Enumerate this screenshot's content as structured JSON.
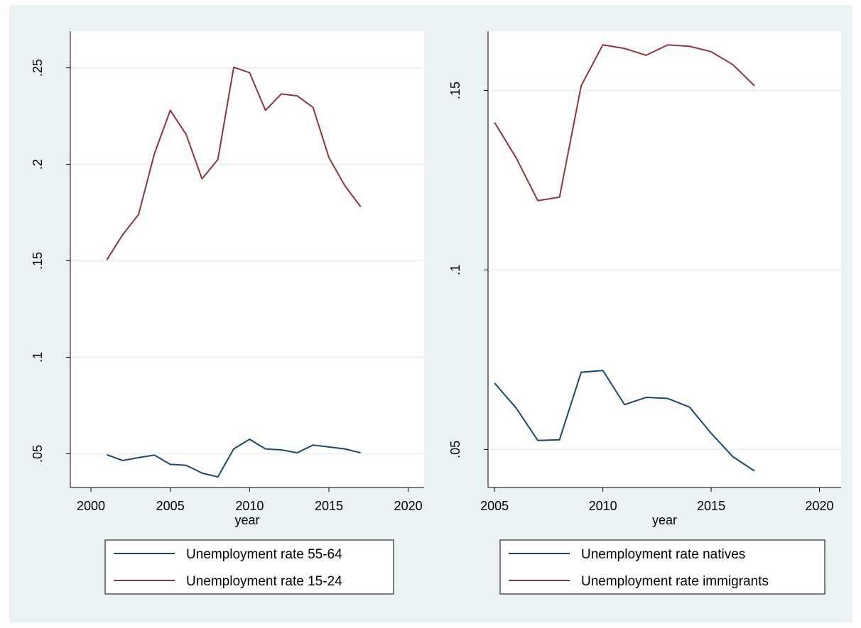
{
  "colors": {
    "background": "#eaf2f3",
    "plot_background": "#ffffff",
    "grid": "#eaf2f3",
    "axis": "#000000",
    "series_blue": "#1a476f",
    "series_red": "#90353b"
  },
  "chart_data": [
    {
      "type": "line",
      "xlabel": "year",
      "ylabel": "",
      "xlim": [
        1998.7,
        2021.0
      ],
      "ylim": [
        0.0325,
        0.269
      ],
      "xticks": [
        2000,
        2005,
        2010,
        2015,
        2020
      ],
      "xtick_labels": [
        "2000",
        "2005",
        "2010",
        "2015",
        "2020"
      ],
      "yticks": [
        0.05,
        0.1,
        0.15,
        0.2,
        0.25
      ],
      "ytick_labels": [
        ".05",
        ".1",
        ".15",
        ".2",
        ".25"
      ],
      "grid": true,
      "legend_position": "bottom",
      "x": [
        2001,
        2002,
        2003,
        2004,
        2005,
        2006,
        2007,
        2008,
        2009,
        2010,
        2011,
        2012,
        2013,
        2014,
        2015,
        2016,
        2017
      ],
      "series": [
        {
          "name": "Unemployment rate 55-64",
          "color_key": "series_blue",
          "values": [
            0.0495,
            0.0465,
            0.048,
            0.0493,
            0.0445,
            0.044,
            0.04,
            0.038,
            0.0525,
            0.0575,
            0.0525,
            0.052,
            0.0505,
            0.0545,
            0.0535,
            0.0525,
            0.0505
          ]
        },
        {
          "name": "Unemployment rate 15-24",
          "color_key": "series_red",
          "values": [
            0.1505,
            0.1635,
            0.174,
            0.2055,
            0.228,
            0.2155,
            0.1925,
            0.2025,
            0.2503,
            0.2475,
            0.228,
            0.2365,
            0.2355,
            0.2295,
            0.2035,
            0.189,
            0.178
          ]
        }
      ]
    },
    {
      "type": "line",
      "xlabel": "year",
      "ylabel": "",
      "xlim": [
        2004.7,
        2021.0
      ],
      "ylim": [
        0.0394,
        0.1665
      ],
      "xticks": [
        2005,
        2010,
        2015,
        2020
      ],
      "xtick_labels": [
        "2005",
        "2010",
        "2015",
        "2020"
      ],
      "yticks": [
        0.05,
        0.1,
        0.15
      ],
      "ytick_labels": [
        ".05",
        ".1",
        ".15"
      ],
      "grid": true,
      "legend_position": "bottom",
      "x": [
        2005,
        2006,
        2007,
        2008,
        2009,
        2010,
        2011,
        2012,
        2013,
        2014,
        2015,
        2016,
        2017
      ],
      "series": [
        {
          "name": "Unemployment rate natives",
          "color_key": "series_blue",
          "values": [
            0.0685,
            0.0615,
            0.0525,
            0.0527,
            0.0715,
            0.072,
            0.0625,
            0.0645,
            0.0642,
            0.0618,
            0.0545,
            0.048,
            0.044
          ]
        },
        {
          "name": "Unemployment rate immigrants",
          "color_key": "series_red",
          "values": [
            0.1411,
            0.1312,
            0.1193,
            0.1203,
            0.1513,
            0.1627,
            0.1617,
            0.1598,
            0.1627,
            0.1623,
            0.1608,
            0.1572,
            0.1513
          ]
        }
      ]
    }
  ]
}
